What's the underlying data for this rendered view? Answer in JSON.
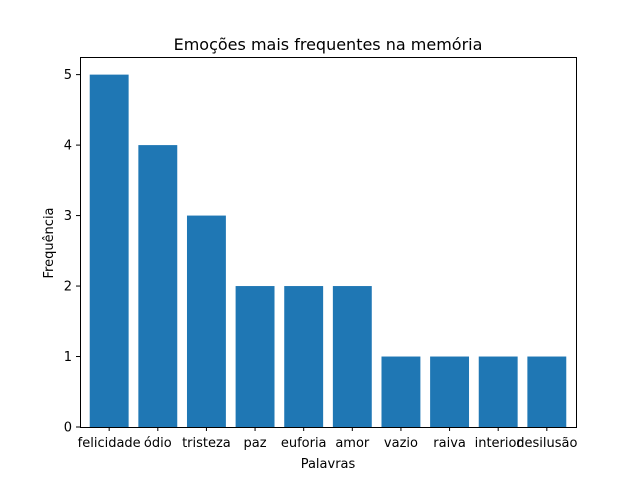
{
  "chart_data": {
    "type": "bar",
    "title": "Emoções mais frequentes na memória",
    "xlabel": "Palavras",
    "ylabel": "Frequência",
    "categories": [
      "felicidade",
      "ódio",
      "tristeza",
      "paz",
      "euforia",
      "amor",
      "vazio",
      "raiva",
      "interior",
      "desilusão"
    ],
    "values": [
      5,
      4,
      3,
      2,
      2,
      2,
      1,
      1,
      1,
      1
    ],
    "ylim": [
      0,
      5.25
    ],
    "yticks": [
      0,
      1,
      2,
      3,
      4,
      5
    ],
    "bar_color": "#1f77b4",
    "grid": false,
    "legend": false
  }
}
